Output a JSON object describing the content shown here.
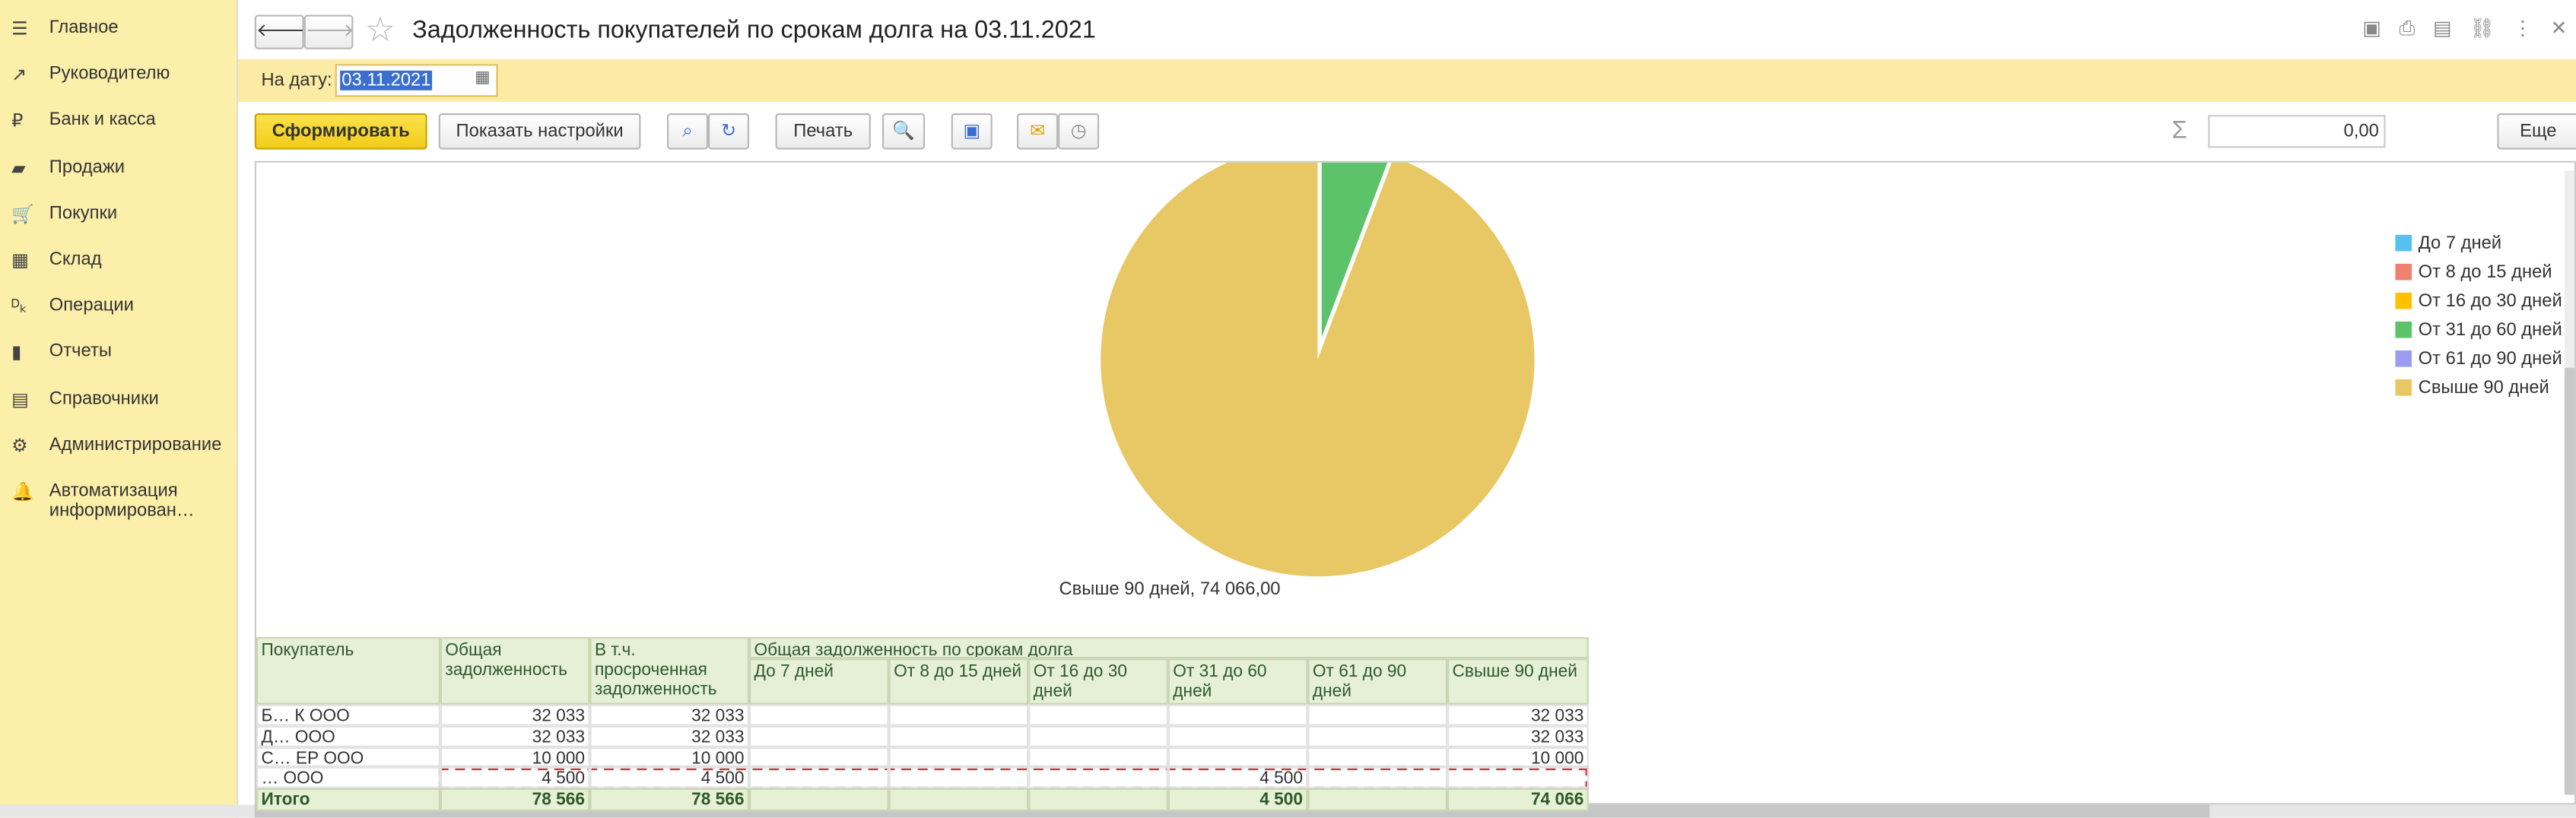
{
  "sidebar": {
    "items": [
      "Главное",
      "Руководителю",
      "Банк и касса",
      "Продажи",
      "Покупки",
      "Склад",
      "Операции",
      "Отчеты",
      "Справочники",
      "Администрирование",
      "Автоматизация информирован…"
    ]
  },
  "header": {
    "title": "Задолженность покупателей по срокам долга на 03.11.2021"
  },
  "filter": {
    "label": "На дату:",
    "date": "03.11.2021"
  },
  "toolbar": {
    "generate": "Сформировать",
    "settings": "Показать настройки",
    "print": "Печать",
    "sum": "0,00",
    "more": "Еще"
  },
  "chart_data": {
    "type": "pie",
    "categories": [
      "До 7 дней",
      "От 8 до 15 дней",
      "От 16 до 30 дней",
      "От 31 до 60 дней",
      "От 61 до 90 дней",
      "Свыше 90 дней"
    ],
    "values": [
      0,
      0,
      0,
      4500,
      0,
      74066
    ],
    "colors": [
      "#56c1f0",
      "#f08070",
      "#ffc000",
      "#5cc36a",
      "#9c9cf0",
      "#e8c864"
    ],
    "value_labels": [
      null,
      null,
      null,
      null,
      null,
      "Свыше 90 дней, 74 066,00"
    ],
    "legend": "right"
  },
  "table": {
    "header": [
      "Покупатель",
      "Общая задолженность",
      "В т.ч. просроченная задолженность",
      "Общая задолженность по срокам долга"
    ],
    "subheader": [
      "До 7 дней",
      "От 8 до 15 дней",
      "От 16 до 30 дней",
      "От 31 до 60 дней",
      "От 61 до 90 дней",
      "Свыше 90 дней"
    ],
    "rows": [
      [
        "Б… К ООО",
        "32 033",
        "32 033",
        null,
        null,
        null,
        null,
        null,
        "32 033"
      ],
      [
        "Д… ООО",
        "32 033",
        "32 033",
        null,
        null,
        null,
        null,
        null,
        "32 033"
      ],
      [
        "С… ЕР ООО",
        "10 000",
        "10 000",
        null,
        null,
        null,
        null,
        null,
        "10 000"
      ],
      [
        "… ООО",
        "4 500",
        "4 500",
        null,
        null,
        null,
        "4 500",
        null,
        null
      ]
    ],
    "total": [
      "Итого",
      "78 566",
      "78 566",
      null,
      null,
      null,
      "4 500",
      null,
      "74 066"
    ]
  }
}
